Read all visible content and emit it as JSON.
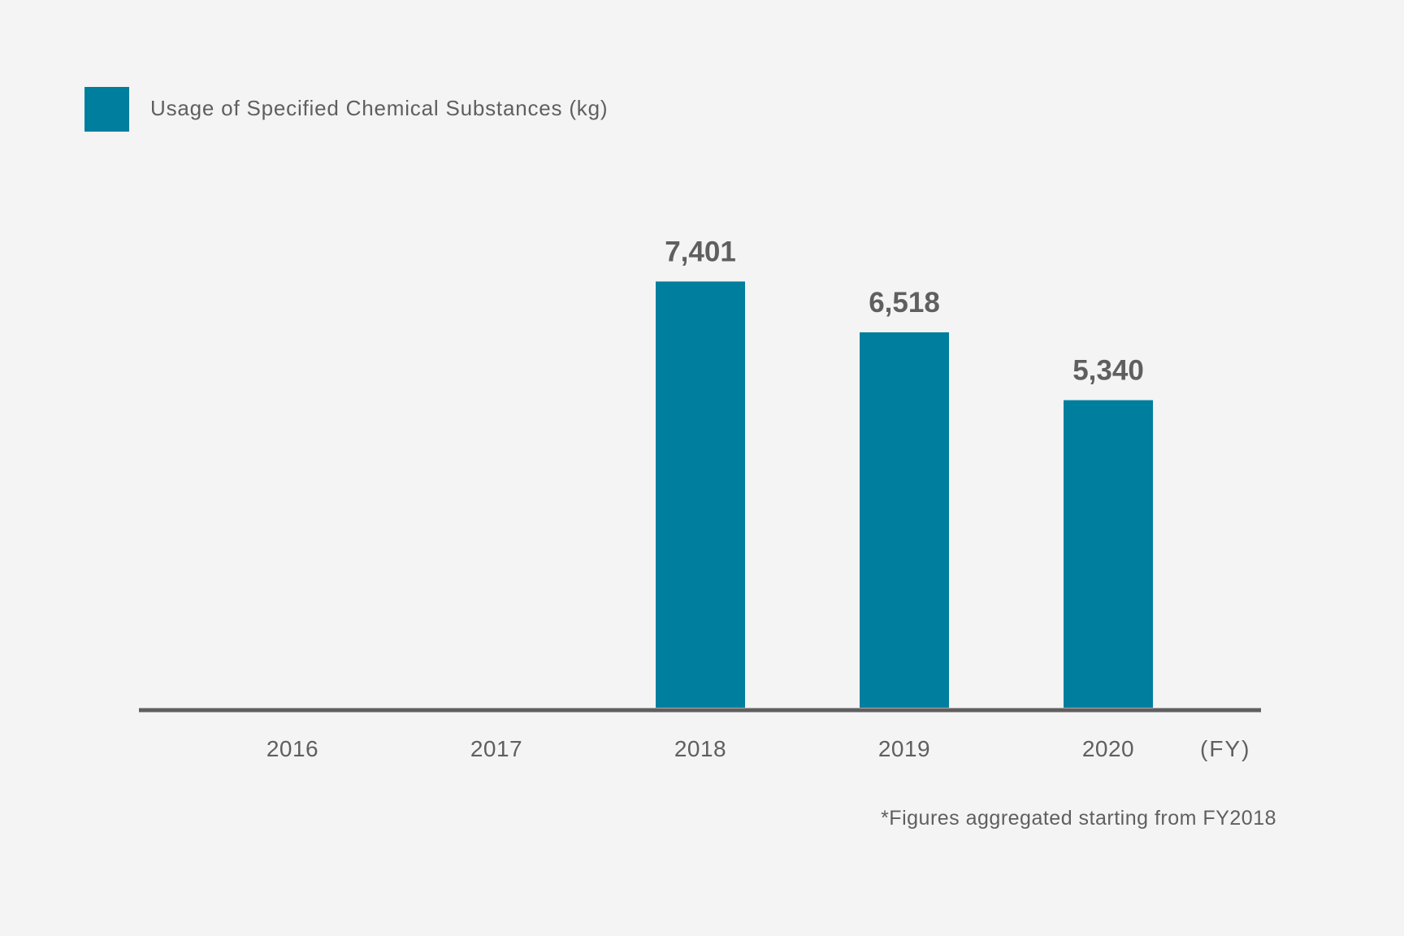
{
  "chart_data": {
    "type": "bar",
    "categories": [
      "2016",
      "2017",
      "2018",
      "2019",
      "2020"
    ],
    "series": [
      {
        "name": "Usage of Specified Chemical Substances (kg)",
        "values": [
          null,
          null,
          7401,
          6518,
          5340
        ],
        "value_labels": [
          "",
          "",
          "7,401",
          "6,518",
          "5,340"
        ]
      }
    ],
    "x_unit": "(FY)",
    "footnote": "*Figures aggregated starting from FY2018",
    "ylim": [
      0,
      8000
    ],
    "grid": false,
    "legend_position": "top-left"
  },
  "colors": {
    "bar": "#007e9e",
    "axis": "#5f5f5f",
    "text": "#5f5f5f",
    "background": "#f4f4f4"
  }
}
